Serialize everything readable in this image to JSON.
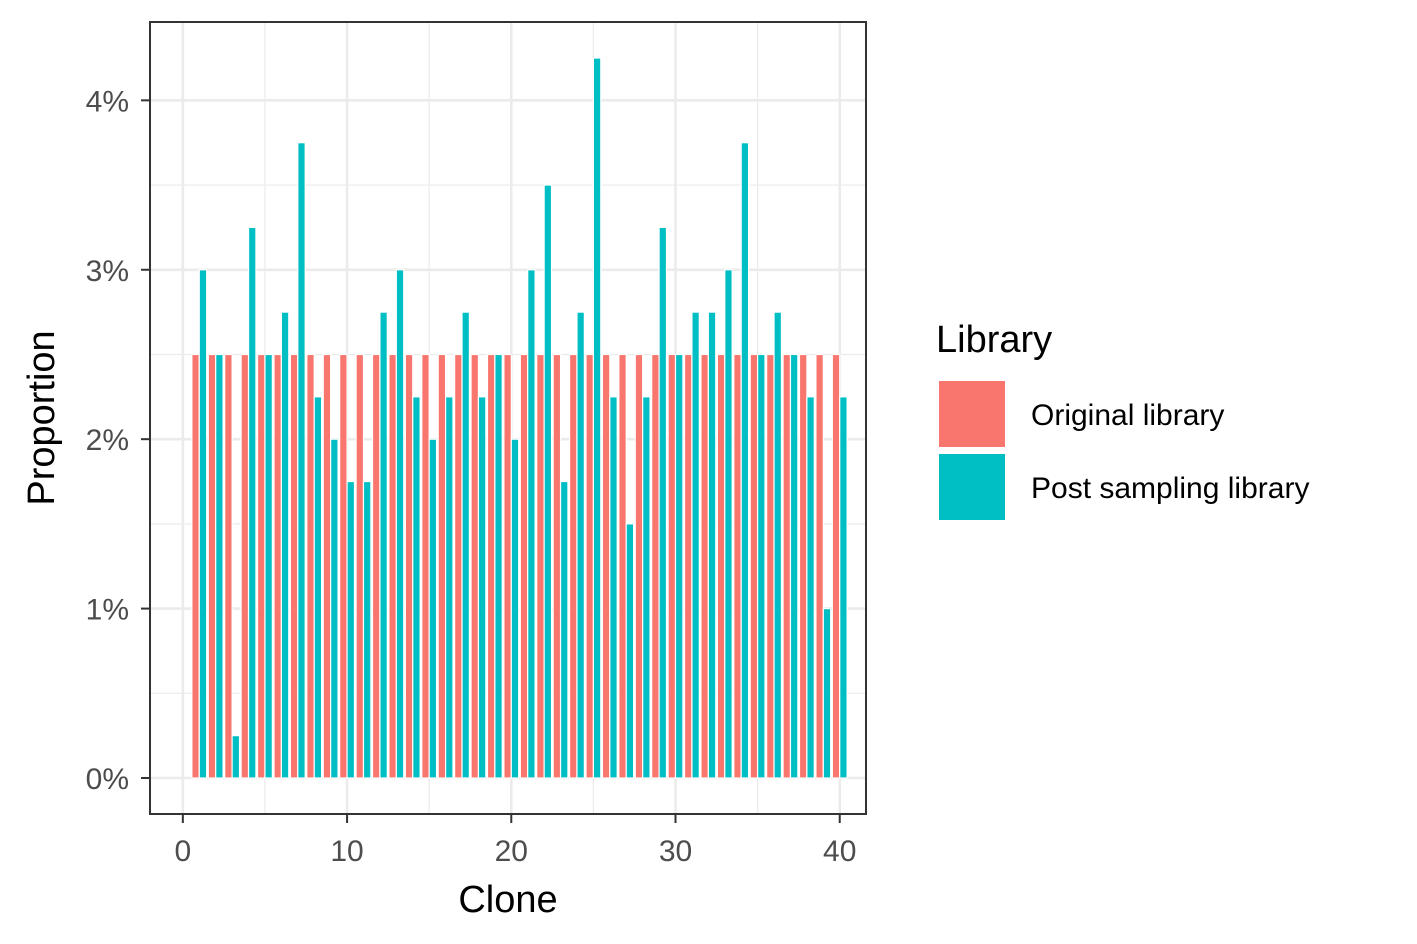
{
  "chart_data": {
    "type": "bar",
    "xlabel": "Clone",
    "ylabel": "Proportion",
    "xlim": [
      -2,
      41.6
    ],
    "ylim": [
      -0.2125,
      4.4625
    ],
    "x_ticks": [
      0,
      10,
      20,
      30,
      40
    ],
    "x_tick_labels": [
      "0",
      "10",
      "20",
      "30",
      "40"
    ],
    "y_ticks": [
      0,
      1,
      2,
      3,
      4
    ],
    "y_tick_labels": [
      "0%",
      "1%",
      "2%",
      "3%",
      "4%"
    ],
    "y_unit": "%",
    "grid": true,
    "legend": {
      "title": "Library",
      "position": "right",
      "entries": [
        "Original library",
        "Post sampling library"
      ]
    },
    "x": [
      1,
      2,
      3,
      4,
      5,
      6,
      7,
      8,
      9,
      10,
      11,
      12,
      13,
      14,
      15,
      16,
      17,
      18,
      19,
      20,
      21,
      22,
      23,
      24,
      25,
      26,
      27,
      28,
      29,
      30,
      31,
      32,
      33,
      34,
      35,
      36,
      37,
      38,
      39,
      40
    ],
    "series": [
      {
        "name": "Original library",
        "color": "#F8766D",
        "values": [
          2.5,
          2.5,
          2.5,
          2.5,
          2.5,
          2.5,
          2.5,
          2.5,
          2.5,
          2.5,
          2.5,
          2.5,
          2.5,
          2.5,
          2.5,
          2.5,
          2.5,
          2.5,
          2.5,
          2.5,
          2.5,
          2.5,
          2.5,
          2.5,
          2.5,
          2.5,
          2.5,
          2.5,
          2.5,
          2.5,
          2.5,
          2.5,
          2.5,
          2.5,
          2.5,
          2.5,
          2.5,
          2.5,
          2.5,
          2.5
        ]
      },
      {
        "name": "Post sampling library",
        "color": "#00BFC4",
        "values": [
          3.0,
          2.5,
          0.25,
          3.25,
          2.5,
          2.75,
          3.75,
          2.25,
          2.0,
          1.75,
          1.75,
          2.75,
          3.0,
          2.25,
          2.0,
          2.25,
          2.75,
          2.25,
          2.5,
          2.0,
          3.0,
          3.5,
          1.75,
          2.75,
          4.25,
          2.25,
          1.5,
          2.25,
          3.25,
          2.5,
          2.75,
          2.75,
          3.0,
          3.75,
          2.5,
          2.75,
          2.5,
          2.25,
          1.0,
          2.25
        ]
      }
    ]
  }
}
